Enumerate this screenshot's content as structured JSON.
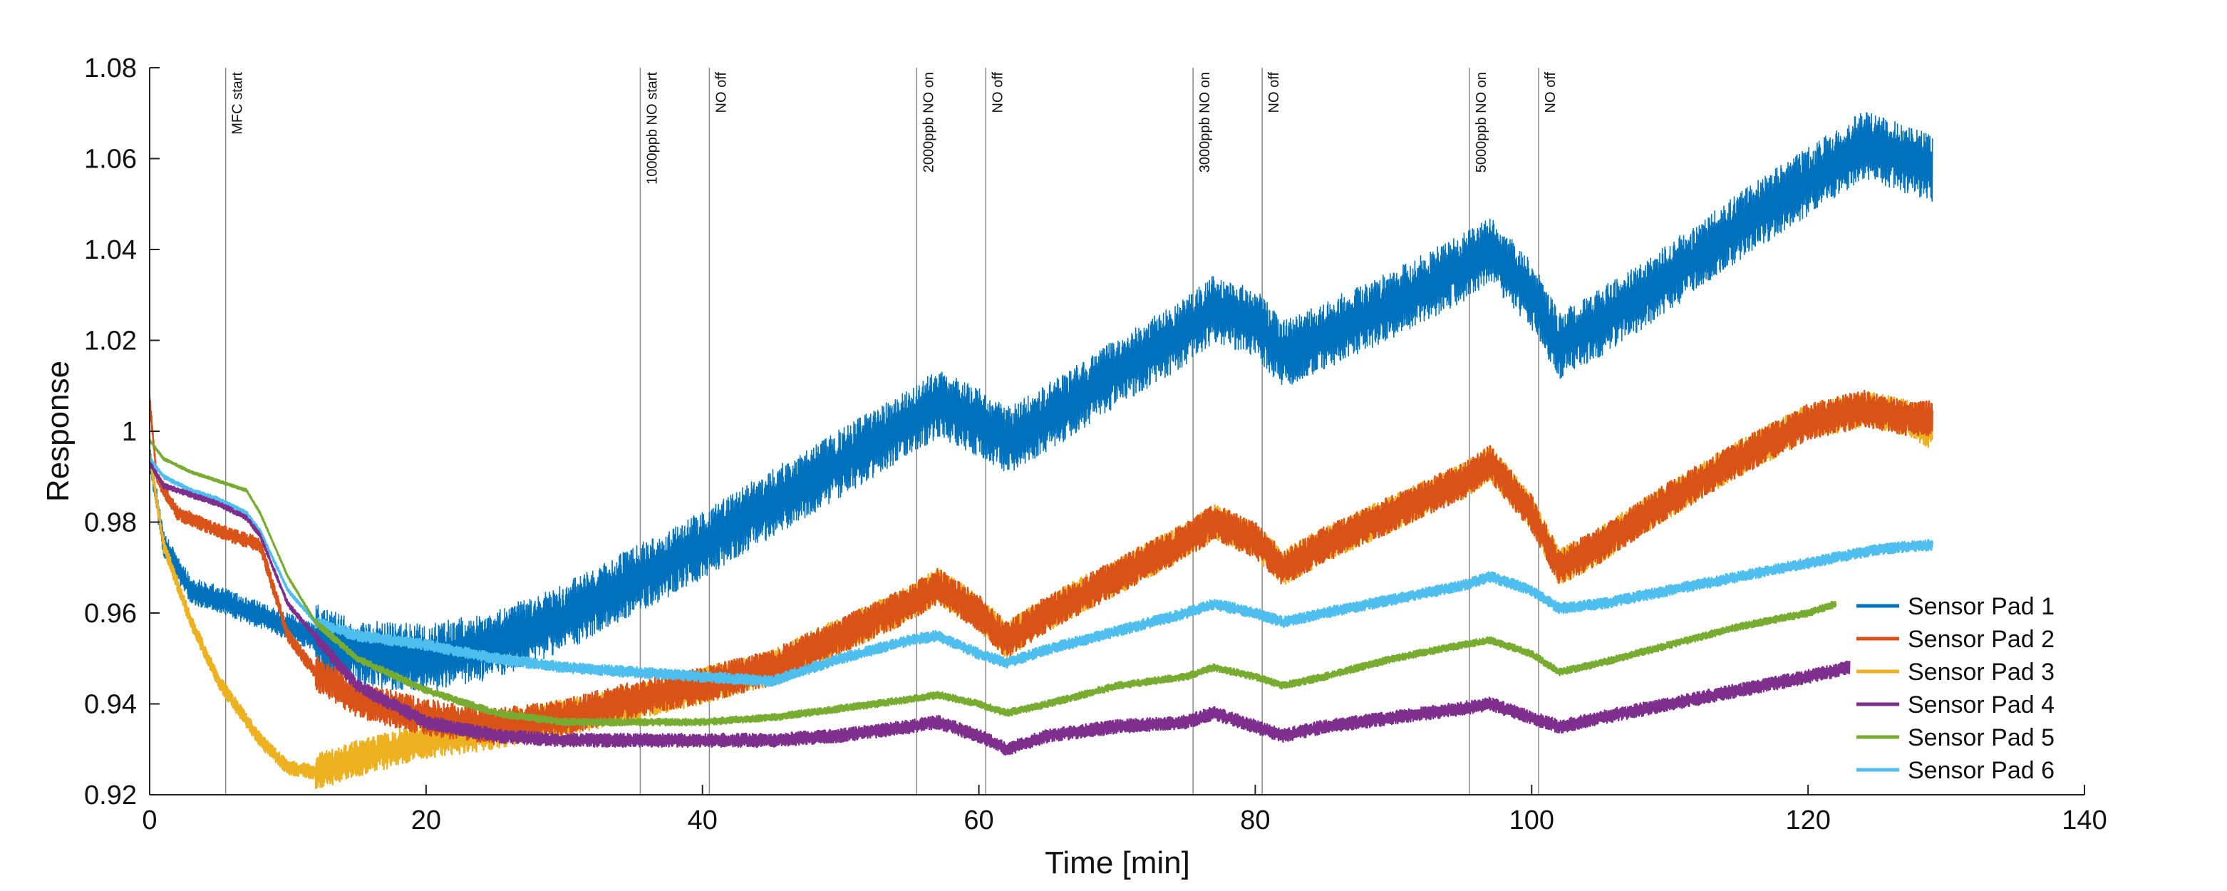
{
  "chart_data": {
    "type": "line",
    "title": "",
    "xlabel": "Time [min]",
    "ylabel": "Response",
    "xlim": [
      0,
      140
    ],
    "ylim": [
      0.92,
      1.08
    ],
    "xticks": [
      0,
      20,
      40,
      60,
      80,
      100,
      120,
      140
    ],
    "xtick_labels": [
      "0",
      "20",
      "40",
      "60",
      "80",
      "100",
      "120",
      "140"
    ],
    "yticks": [
      0.92,
      0.94,
      0.96,
      0.98,
      1.0,
      1.02,
      1.04,
      1.06,
      1.08
    ],
    "ytick_labels": [
      "0.92",
      "0.94",
      "0.96",
      "0.98",
      "1",
      "1.02",
      "1.04",
      "1.06",
      "1.08"
    ],
    "grid": false,
    "legend_position": "bottom-right",
    "events": [
      {
        "x": 5.5,
        "label": "MFC start"
      },
      {
        "x": 35.5,
        "label": "1000ppb NO start"
      },
      {
        "x": 40.5,
        "label": "NO off"
      },
      {
        "x": 55.5,
        "label": "2000ppb NO on"
      },
      {
        "x": 60.5,
        "label": "NO off"
      },
      {
        "x": 75.5,
        "label": "3000ppb NO on"
      },
      {
        "x": 80.5,
        "label": "NO off"
      },
      {
        "x": 95.5,
        "label": "5000ppb NO on"
      },
      {
        "x": 100.5,
        "label": "NO off"
      }
    ],
    "series": [
      {
        "name": "Sensor Pad 1",
        "color": "#0072BD",
        "noise": 0.0075,
        "x": [
          0,
          1,
          3,
          5,
          10,
          15,
          20,
          25,
          30,
          35,
          40,
          45,
          50,
          55,
          57,
          60,
          62,
          65,
          70,
          75,
          77,
          80,
          82,
          85,
          90,
          95,
          97,
          100,
          102,
          105,
          110,
          115,
          120,
          124,
          127,
          129
        ],
        "y": [
          0.995,
          0.975,
          0.965,
          0.963,
          0.957,
          0.951,
          0.95,
          0.953,
          0.959,
          0.967,
          0.975,
          0.984,
          0.993,
          1.002,
          1.006,
          1.002,
          0.998,
          1.003,
          1.013,
          1.022,
          1.027,
          1.024,
          1.017,
          1.021,
          1.028,
          1.036,
          1.04,
          1.03,
          1.019,
          1.024,
          1.034,
          1.045,
          1.055,
          1.063,
          1.06,
          1.058
        ]
      },
      {
        "name": "Sensor Pad 2",
        "color": "#D95319",
        "noise": 0.004,
        "x": [
          0,
          0.5,
          2,
          5,
          8,
          10,
          12,
          15,
          20,
          25,
          30,
          35,
          40,
          45,
          50,
          55,
          57,
          60,
          62,
          65,
          70,
          75,
          77,
          80,
          82,
          85,
          90,
          95,
          97,
          100,
          102,
          105,
          110,
          115,
          120,
          124,
          127,
          129
        ],
        "y": [
          1.007,
          0.99,
          0.982,
          0.978,
          0.975,
          0.955,
          0.947,
          0.941,
          0.937,
          0.935,
          0.937,
          0.941,
          0.944,
          0.948,
          0.955,
          0.962,
          0.966,
          0.96,
          0.954,
          0.96,
          0.968,
          0.976,
          0.98,
          0.976,
          0.97,
          0.975,
          0.982,
          0.989,
          0.993,
          0.982,
          0.97,
          0.975,
          0.985,
          0.994,
          1.002,
          1.005,
          1.003,
          1.003
        ]
      },
      {
        "name": "Sensor Pad 3",
        "color": "#EDB120",
        "noise": 0.004,
        "x": [
          0,
          1,
          3,
          5,
          8,
          10,
          12,
          15,
          20,
          25,
          30,
          35,
          40,
          45,
          50,
          55,
          57,
          60,
          62,
          65,
          70,
          75,
          77,
          80,
          82,
          85,
          90,
          95,
          97,
          100,
          102,
          105,
          110,
          115,
          120,
          124,
          127,
          129
        ],
        "y": [
          0.995,
          0.975,
          0.958,
          0.945,
          0.932,
          0.926,
          0.925,
          0.928,
          0.932,
          0.934,
          0.937,
          0.94,
          0.944,
          0.948,
          0.955,
          0.962,
          0.966,
          0.96,
          0.954,
          0.96,
          0.968,
          0.976,
          0.98,
          0.976,
          0.97,
          0.975,
          0.982,
          0.989,
          0.993,
          0.982,
          0.97,
          0.975,
          0.985,
          0.994,
          1.002,
          1.005,
          1.003,
          1.0
        ]
      },
      {
        "name": "Sensor Pad 4",
        "color": "#7E2F8E",
        "noise": 0.0015,
        "x": [
          0,
          1,
          3,
          5,
          7,
          8,
          10,
          15,
          20,
          25,
          30,
          35,
          40,
          45,
          50,
          55,
          57,
          60,
          62,
          65,
          70,
          75,
          77,
          80,
          82,
          85,
          90,
          95,
          97,
          100,
          102,
          105,
          110,
          115,
          120,
          123
        ],
        "y": [
          0.993,
          0.988,
          0.986,
          0.984,
          0.981,
          0.977,
          0.962,
          0.944,
          0.936,
          0.933,
          0.932,
          0.932,
          0.932,
          0.932,
          0.933,
          0.935,
          0.936,
          0.933,
          0.93,
          0.933,
          0.935,
          0.936,
          0.938,
          0.935,
          0.933,
          0.935,
          0.937,
          0.939,
          0.94,
          0.937,
          0.935,
          0.937,
          0.94,
          0.943,
          0.946,
          0.948
        ]
      },
      {
        "name": "Sensor Pad 5",
        "color": "#77AC30",
        "noise": 0.0008,
        "x": [
          0,
          1,
          3,
          5,
          7,
          8,
          10,
          12,
          15,
          20,
          25,
          30,
          35,
          40,
          45,
          50,
          55,
          57,
          60,
          62,
          65,
          70,
          75,
          77,
          80,
          82,
          85,
          90,
          95,
          97,
          100,
          102,
          105,
          110,
          115,
          120,
          122
        ],
        "y": [
          0.998,
          0.994,
          0.991,
          0.989,
          0.987,
          0.982,
          0.968,
          0.958,
          0.95,
          0.943,
          0.938,
          0.936,
          0.936,
          0.936,
          0.937,
          0.939,
          0.941,
          0.942,
          0.94,
          0.938,
          0.94,
          0.944,
          0.946,
          0.948,
          0.946,
          0.944,
          0.946,
          0.95,
          0.953,
          0.954,
          0.951,
          0.947,
          0.949,
          0.953,
          0.957,
          0.96,
          0.962
        ]
      },
      {
        "name": "Sensor Pad 6",
        "color": "#4DBEEE",
        "noise": 0.0012,
        "x": [
          0,
          1,
          3,
          5,
          7,
          8,
          10,
          12,
          15,
          20,
          25,
          30,
          35,
          40,
          45,
          50,
          55,
          57,
          60,
          62,
          65,
          70,
          75,
          77,
          80,
          82,
          85,
          90,
          95,
          97,
          100,
          102,
          105,
          110,
          115,
          120,
          125,
          129
        ],
        "y": [
          0.994,
          0.99,
          0.987,
          0.985,
          0.982,
          0.978,
          0.965,
          0.958,
          0.955,
          0.953,
          0.95,
          0.948,
          0.947,
          0.946,
          0.945,
          0.95,
          0.954,
          0.955,
          0.951,
          0.949,
          0.952,
          0.956,
          0.96,
          0.962,
          0.96,
          0.958,
          0.96,
          0.963,
          0.966,
          0.968,
          0.965,
          0.961,
          0.962,
          0.965,
          0.968,
          0.971,
          0.974,
          0.975
        ]
      }
    ]
  }
}
